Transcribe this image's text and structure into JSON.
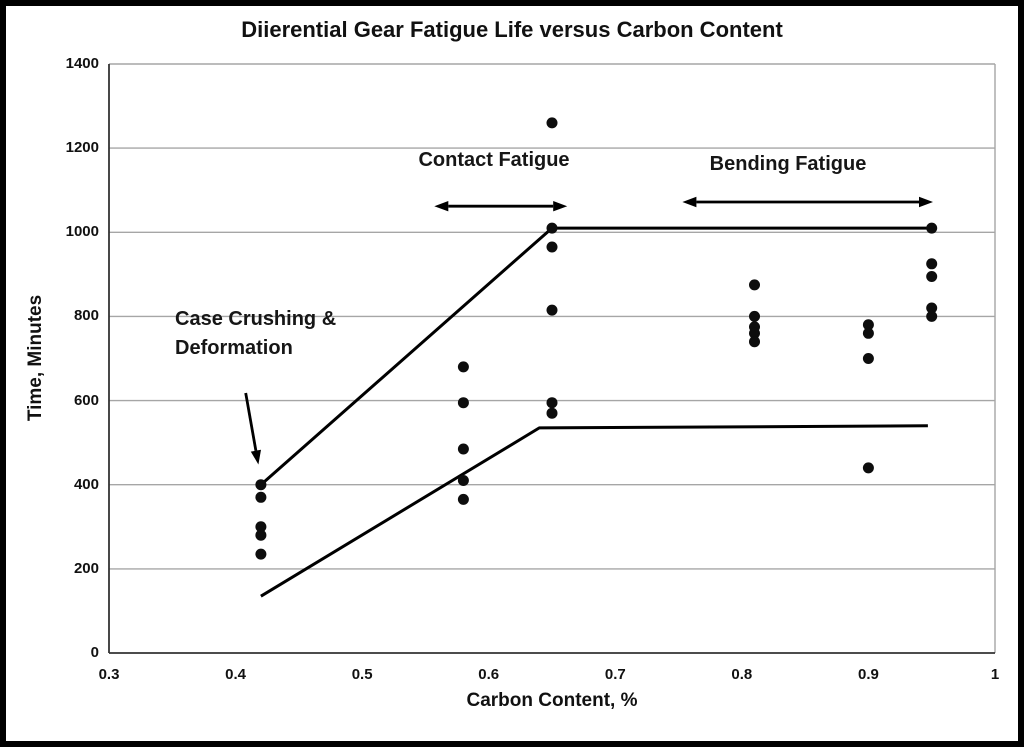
{
  "chart_data": {
    "type": "scatter",
    "title": "Diierential Gear Fatigue Life versus Carbon Content",
    "xlabel": "Carbon Content, %",
    "ylabel": "Time, Minutes",
    "xlim": [
      0.3,
      1.0
    ],
    "ylim": [
      0,
      1400
    ],
    "xtick_labels": [
      "0.3",
      "0.4",
      "0.5",
      "0.6",
      "0.7",
      "0.8",
      "0.9",
      "1"
    ],
    "ytick_labels": [
      "0",
      "200",
      "400",
      "600",
      "800",
      "1000",
      "1200",
      "1400"
    ],
    "grid": "horizontal-only",
    "legend": "none",
    "points": [
      {
        "x": 0.42,
        "y": 400
      },
      {
        "x": 0.42,
        "y": 370
      },
      {
        "x": 0.42,
        "y": 300
      },
      {
        "x": 0.42,
        "y": 280
      },
      {
        "x": 0.42,
        "y": 235
      },
      {
        "x": 0.58,
        "y": 680
      },
      {
        "x": 0.58,
        "y": 595
      },
      {
        "x": 0.58,
        "y": 485
      },
      {
        "x": 0.58,
        "y": 410
      },
      {
        "x": 0.58,
        "y": 365
      },
      {
        "x": 0.65,
        "y": 1260
      },
      {
        "x": 0.65,
        "y": 1010
      },
      {
        "x": 0.65,
        "y": 965
      },
      {
        "x": 0.65,
        "y": 815
      },
      {
        "x": 0.65,
        "y": 595
      },
      {
        "x": 0.65,
        "y": 570
      },
      {
        "x": 0.81,
        "y": 875
      },
      {
        "x": 0.81,
        "y": 800
      },
      {
        "x": 0.81,
        "y": 775
      },
      {
        "x": 0.81,
        "y": 760
      },
      {
        "x": 0.81,
        "y": 740
      },
      {
        "x": 0.9,
        "y": 780
      },
      {
        "x": 0.9,
        "y": 760
      },
      {
        "x": 0.9,
        "y": 700
      },
      {
        "x": 0.9,
        "y": 440
      },
      {
        "x": 0.95,
        "y": 1010
      },
      {
        "x": 0.95,
        "y": 925
      },
      {
        "x": 0.95,
        "y": 895
      },
      {
        "x": 0.95,
        "y": 820
      },
      {
        "x": 0.95,
        "y": 800
      }
    ],
    "trend_lines": [
      {
        "name": "upper-bound-line",
        "points": [
          [
            0.42,
            400
          ],
          [
            0.65,
            1010
          ],
          [
            0.95,
            1010
          ]
        ]
      },
      {
        "name": "lower-bound-line",
        "points": [
          [
            0.42,
            135
          ],
          [
            0.64,
            535
          ],
          [
            0.947,
            540
          ]
        ]
      }
    ],
    "range_arrows": [
      {
        "label": "Contact Fatigue",
        "x1": 0.557,
        "x2": 0.662,
        "y": 1062
      },
      {
        "label": "Bending Fatigue",
        "x1": 0.753,
        "x2": 0.951,
        "y": 1072
      }
    ],
    "pointer_annotation": {
      "label_lines": [
        "Case Crushing &",
        "Deformation"
      ],
      "from": [
        0.408,
        618
      ],
      "to": [
        0.418,
        448
      ]
    }
  },
  "colors": {
    "text": "#111111",
    "point": "#0d0d0d",
    "trend_line": "#000000",
    "gridline": "#a6a6a6",
    "axis_line": "#333333",
    "frame": "#000000",
    "background": "#ffffff"
  }
}
